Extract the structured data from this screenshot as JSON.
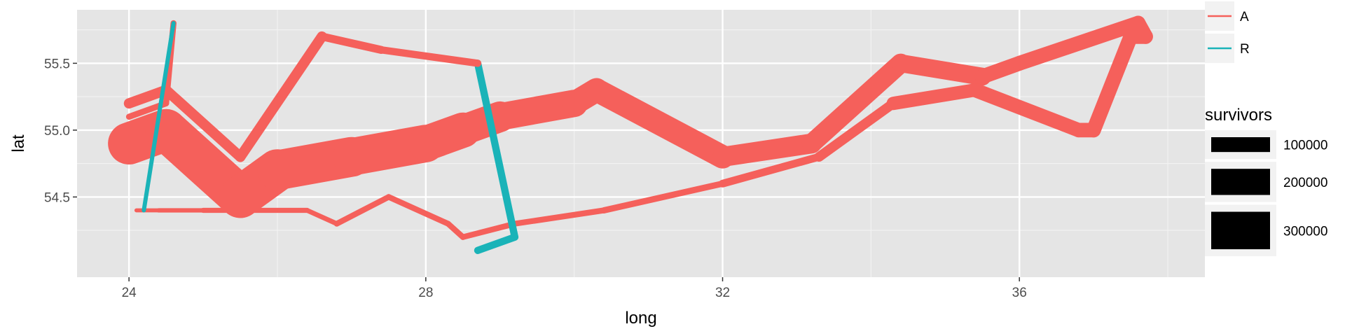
{
  "chart_data": {
    "type": "line",
    "title": "",
    "xlabel": "long",
    "ylabel": "lat",
    "xlim": [
      23.3,
      38.5
    ],
    "ylim": [
      53.9,
      55.9
    ],
    "x_ticks": [
      24,
      28,
      32,
      36
    ],
    "y_ticks": [
      54.5,
      55.0,
      55.5
    ],
    "grid": true,
    "background": "#e5e5e5",
    "legend": {
      "color_title": "",
      "color_entries": [
        {
          "name": "A",
          "color": "#f5605b"
        },
        {
          "name": "R",
          "color": "#1ab3b8"
        }
      ],
      "size_title": "survivors",
      "size_entries": [
        {
          "label": "100000",
          "value": 100000
        },
        {
          "label": "200000",
          "value": 200000
        },
        {
          "label": "300000",
          "value": 300000
        }
      ],
      "placement": "right"
    },
    "series": [
      {
        "name": "A",
        "color": "#f5605b",
        "points": [
          {
            "long": 24.0,
            "lat": 54.9,
            "survivors": 340000
          },
          {
            "long": 24.5,
            "lat": 55.0,
            "survivors": 340000
          },
          {
            "long": 25.5,
            "lat": 54.5,
            "survivors": 340000
          },
          {
            "long": 26.0,
            "lat": 54.7,
            "survivors": 320000
          },
          {
            "long": 27.0,
            "lat": 54.8,
            "survivors": 300000
          },
          {
            "long": 28.0,
            "lat": 54.9,
            "survivors": 280000
          },
          {
            "long": 28.5,
            "lat": 55.0,
            "survivors": 240000
          },
          {
            "long": 29.0,
            "lat": 55.1,
            "survivors": 210000
          },
          {
            "long": 30.0,
            "lat": 55.2,
            "survivors": 180000
          },
          {
            "long": 30.3,
            "lat": 55.3,
            "survivors": 175000
          },
          {
            "long": 32.0,
            "lat": 54.8,
            "survivors": 145000
          },
          {
            "long": 33.2,
            "lat": 54.9,
            "survivors": 140000
          },
          {
            "long": 34.4,
            "lat": 55.5,
            "survivors": 127100
          },
          {
            "long": 35.5,
            "lat": 55.4,
            "survivors": 100000
          },
          {
            "long": 36.0,
            "lat": 55.5,
            "survivors": 100000
          },
          {
            "long": 37.6,
            "lat": 55.8,
            "survivors": 100000
          },
          {
            "long": 37.7,
            "lat": 55.7,
            "survivors": 100000
          },
          {
            "long": 37.5,
            "lat": 55.7,
            "survivors": 98000
          },
          {
            "long": 37.0,
            "lat": 55.0,
            "survivors": 97000
          },
          {
            "long": 36.8,
            "lat": 55.0,
            "survivors": 96000
          },
          {
            "long": 35.4,
            "lat": 55.3,
            "survivors": 87000
          },
          {
            "long": 34.3,
            "lat": 55.2,
            "survivors": 55000
          },
          {
            "long": 33.3,
            "lat": 54.8,
            "survivors": 37000
          },
          {
            "long": 32.0,
            "lat": 54.6,
            "survivors": 24000
          },
          {
            "long": 30.4,
            "lat": 54.4,
            "survivors": 20000
          },
          {
            "long": 29.2,
            "lat": 54.3,
            "survivors": 20000
          },
          {
            "long": 28.5,
            "lat": 54.2,
            "survivors": 20000
          },
          {
            "long": 28.3,
            "lat": 54.3,
            "survivors": 20000
          },
          {
            "long": 27.5,
            "lat": 54.5,
            "survivors": 20000
          },
          {
            "long": 26.8,
            "lat": 54.3,
            "survivors": 12000
          },
          {
            "long": 26.4,
            "lat": 54.4,
            "survivors": 14000
          },
          {
            "long": 25.0,
            "lat": 54.4,
            "survivors": 8000
          },
          {
            "long": 24.4,
            "lat": 54.4,
            "survivors": 4000
          },
          {
            "long": 24.2,
            "lat": 54.4,
            "survivors": 4000
          },
          {
            "long": 24.1,
            "lat": 54.4,
            "survivors": 4000
          }
        ]
      },
      {
        "name": "R",
        "color": "#1ab3b8",
        "points": [
          {
            "long": 28.7,
            "lat": 55.5,
            "survivors": 33000
          },
          {
            "long": 29.2,
            "lat": 54.2,
            "survivors": 33000
          },
          {
            "long": 28.7,
            "lat": 54.1,
            "survivors": 30000
          }
        ]
      },
      {
        "name": "A",
        "color": "#f5605b",
        "points": [
          {
            "long": 24.0,
            "lat": 55.2,
            "survivors": 60000
          },
          {
            "long": 24.5,
            "lat": 55.3,
            "survivors": 60000
          },
          {
            "long": 25.5,
            "lat": 54.8,
            "survivors": 60000
          },
          {
            "long": 26.6,
            "lat": 55.7,
            "survivors": 40000
          },
          {
            "long": 27.4,
            "lat": 55.6,
            "survivors": 33000
          },
          {
            "long": 28.7,
            "lat": 55.5,
            "survivors": 33000
          }
        ]
      },
      {
        "name": "A",
        "color": "#f5605b",
        "points": [
          {
            "long": 24.0,
            "lat": 55.1,
            "survivors": 22000
          },
          {
            "long": 24.5,
            "lat": 55.2,
            "survivors": 22000
          },
          {
            "long": 24.6,
            "lat": 55.8,
            "survivors": 6000
          }
        ]
      },
      {
        "name": "R",
        "color": "#1ab3b8",
        "points": [
          {
            "long": 24.6,
            "lat": 55.8,
            "survivors": 6000
          },
          {
            "long": 24.2,
            "lat": 54.4,
            "survivors": 6000
          }
        ]
      }
    ]
  }
}
